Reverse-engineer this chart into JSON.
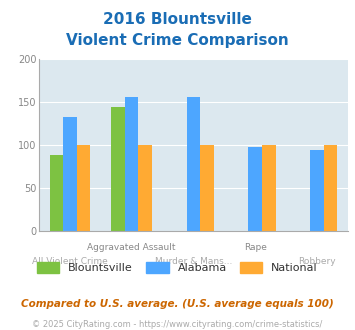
{
  "title_line1": "2016 Blountsville",
  "title_line2": "Violent Crime Comparison",
  "categories": [
    "All Violent Crime",
    "Aggravated Assault",
    "Murder & Mans...",
    "Rape",
    "Robbery"
  ],
  "series": {
    "Blountsville": [
      89,
      144,
      null,
      null,
      null
    ],
    "Alabama": [
      133,
      156,
      156,
      98,
      94
    ],
    "National": [
      100,
      100,
      100,
      100,
      100
    ]
  },
  "colors": {
    "Blountsville": "#7dc242",
    "Alabama": "#4da6ff",
    "National": "#ffaa33"
  },
  "ylim": [
    0,
    200
  ],
  "yticks": [
    0,
    50,
    100,
    150,
    200
  ],
  "plot_bg": "#dce8ef",
  "title_color": "#1a6db5",
  "footer_text": "Compared to U.S. average. (U.S. average equals 100)",
  "copyright_text": "© 2025 CityRating.com - https://www.cityrating.com/crime-statistics/",
  "footer_color": "#cc6600",
  "copyright_color": "#aaaaaa",
  "bar_width": 0.22
}
